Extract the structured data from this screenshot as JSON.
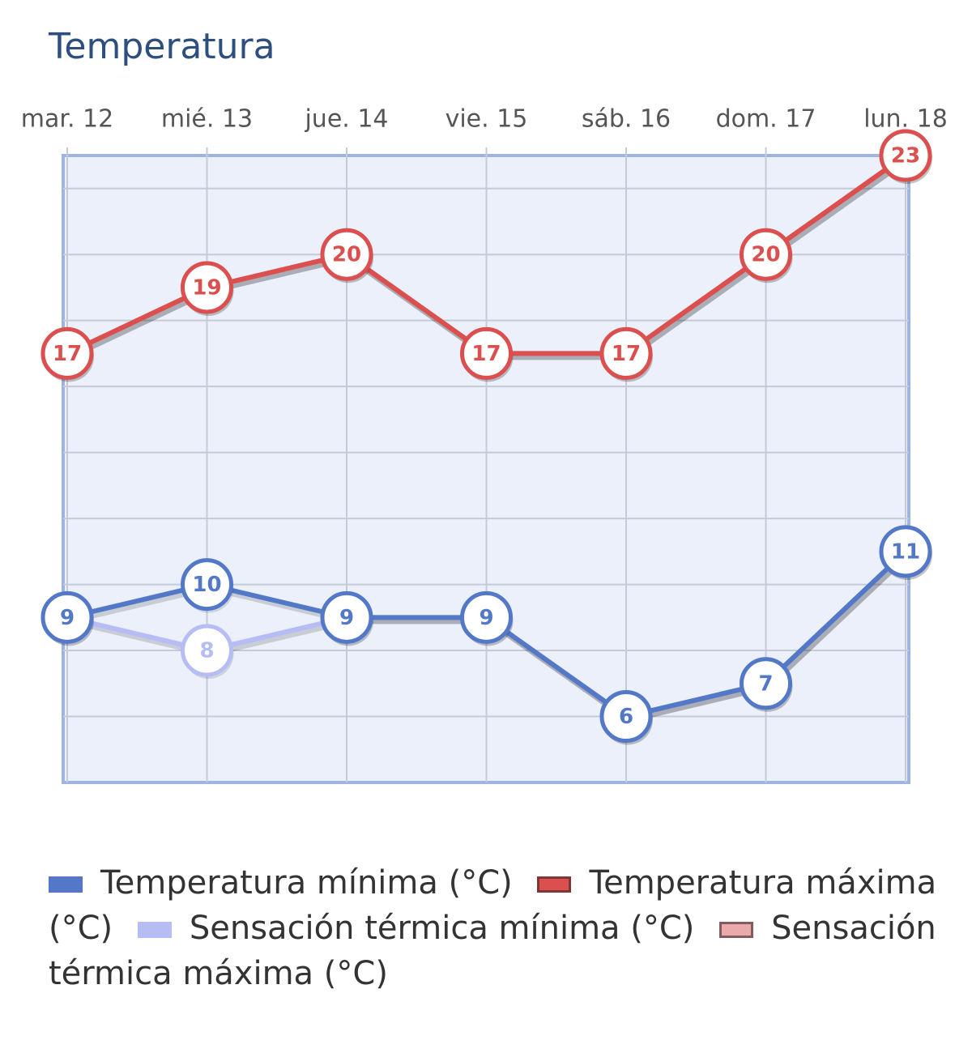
{
  "chart_data": {
    "type": "line",
    "title": "Temperatura",
    "categories": [
      "mar. 12",
      "mié. 13",
      "jue. 14",
      "vie. 15",
      "sáb. 16",
      "dom. 17",
      "lun. 18"
    ],
    "series": [
      {
        "name": "Temperatura mínima (°C)",
        "color": "#5478c8",
        "values": [
          9,
          10,
          9,
          9,
          6,
          7,
          11
        ]
      },
      {
        "name": "Temperatura máxima (°C)",
        "color": "#dc4f4f",
        "values": [
          17,
          19,
          20,
          17,
          17,
          20,
          23
        ]
      },
      {
        "name": "Sensación térmica mínima (°C)",
        "color": "#b6bdf4",
        "values": [
          9,
          8,
          9,
          9,
          6,
          7,
          11
        ]
      },
      {
        "name": "Sensación térmica máxima (°C)",
        "color": "#eaa9ab",
        "values": [
          17,
          19,
          20,
          17,
          17,
          20,
          23
        ]
      }
    ],
    "ylim": [
      4,
      23
    ],
    "yticks": [
      6,
      8,
      10,
      12,
      14,
      16,
      18,
      20,
      22
    ],
    "grid": true
  }
}
